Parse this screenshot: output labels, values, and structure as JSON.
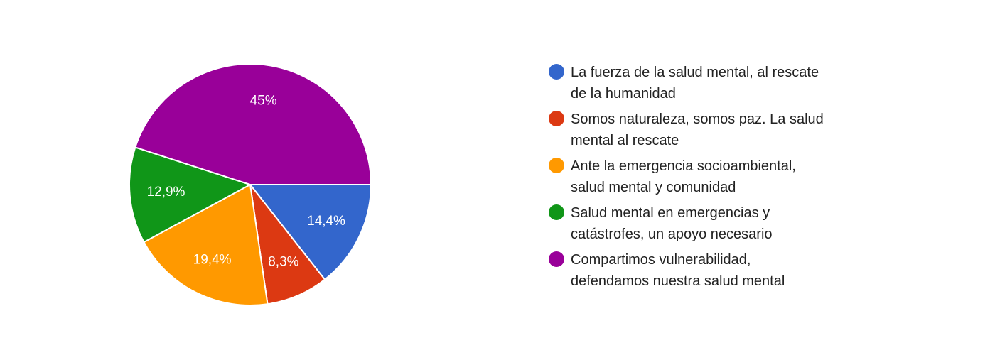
{
  "chart_data": {
    "type": "pie",
    "title": "",
    "legend_position": "right",
    "slices": [
      {
        "label": "La fuerza de la salud mental, al rescate de la humanidad",
        "legend_lines": [
          "La fuerza de la salud mental, al rescate",
          "de la humanidad"
        ],
        "value": 14.4,
        "value_label": "14,4%",
        "color": "#3366cc"
      },
      {
        "label": "Somos naturaleza, somos paz. La salud mental al rescate",
        "legend_lines": [
          "Somos naturaleza, somos paz. La salud",
          "mental al rescate"
        ],
        "value": 8.3,
        "value_label": "8,3%",
        "color": "#dc3912"
      },
      {
        "label": "Ante la emergencia socioambiental, salud mental y comunidad",
        "legend_lines": [
          "Ante la emergencia socioambiental,",
          "salud mental y comunidad"
        ],
        "value": 19.4,
        "value_label": "19,4%",
        "color": "#ff9900"
      },
      {
        "label": "Salud mental en emergencias y catástrofes, un apoyo necesario",
        "legend_lines": [
          "Salud mental en emergencias y",
          "catástrofes, un apoyo necesario"
        ],
        "value": 12.9,
        "value_label": "12,9%",
        "color": "#109618"
      },
      {
        "label": "Compartimos vulnerabilidad, defendamos nuestra salud mental",
        "legend_lines": [
          "Compartimos vulnerabilidad,",
          "defendamos nuestra salud mental"
        ],
        "value": 45,
        "value_label": "45%",
        "color": "#990099"
      }
    ]
  }
}
